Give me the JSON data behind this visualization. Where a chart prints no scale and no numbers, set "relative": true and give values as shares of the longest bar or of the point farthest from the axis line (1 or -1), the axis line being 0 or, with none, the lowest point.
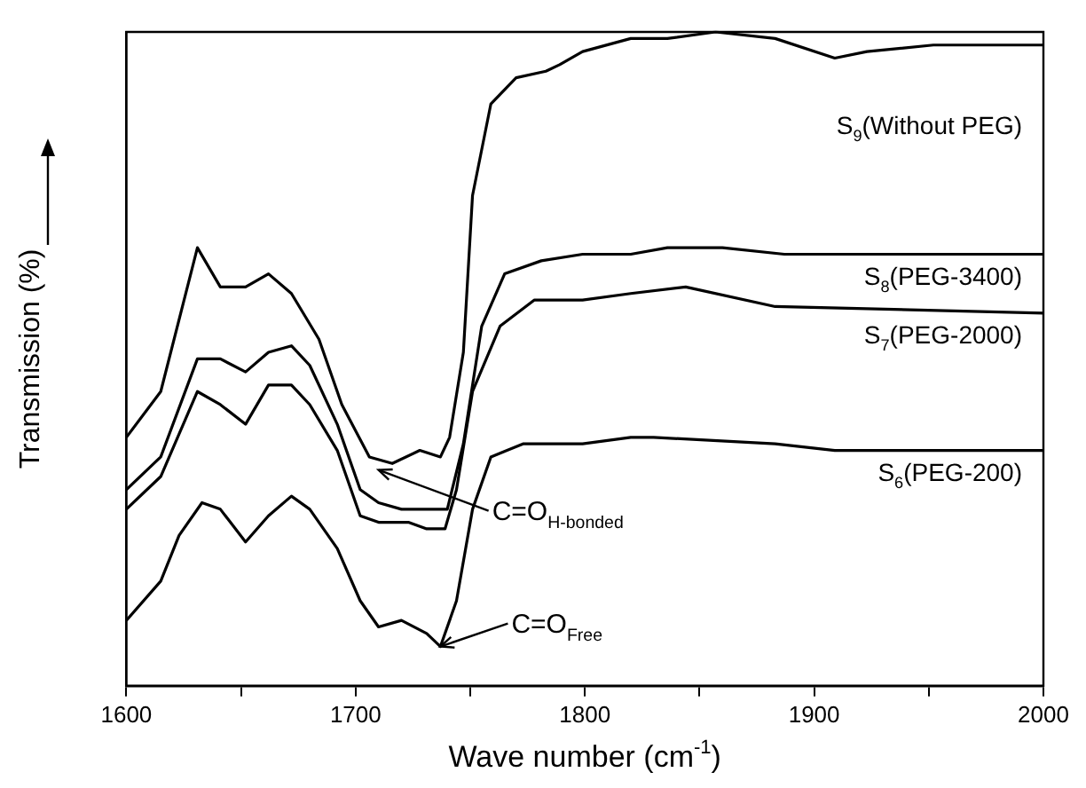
{
  "chart_data": {
    "type": "line",
    "xlabel": "Wave number (cm$^{-1}$)",
    "ylabel": "Transmission (%)",
    "relative": true,
    "legend": false,
    "marker": "none",
    "line_style": "solid",
    "xlim": [
      1600,
      2000
    ],
    "xticks": [
      1600,
      {
        "value": 1650,
        "label": null
      },
      1700,
      {
        "value": 1750,
        "label": null
      },
      1800,
      {
        "value": 1850,
        "label": null
      },
      1900,
      {
        "value": 1950,
        "label": null
      },
      2000
    ],
    "series": [
      {
        "name": "S$_{9}$(Without PEG)",
        "color": "#000000",
        "x": [
          1600,
          1615,
          1631,
          1641,
          1652,
          1662,
          1672,
          1684,
          1694,
          1706,
          1716,
          1728,
          1737,
          1741,
          1747,
          1751,
          1759,
          1770,
          1783,
          1789,
          1799,
          1820,
          1836,
          1857,
          1883,
          1909,
          1923,
          1952,
          2000
        ],
        "values": [
          0.38,
          0.45,
          0.67,
          0.61,
          0.61,
          0.63,
          0.6,
          0.53,
          0.43,
          0.35,
          0.34,
          0.36,
          0.35,
          0.38,
          0.51,
          0.75,
          0.89,
          0.93,
          0.94,
          0.95,
          0.97,
          0.99,
          0.99,
          1.0,
          0.99,
          0.96,
          0.97,
          0.98,
          0.98
        ]
      },
      {
        "name": "S$_{8}$(PEG-3400)",
        "color": "#000000",
        "x": [
          1600,
          1615,
          1631,
          1641,
          1652,
          1662,
          1672,
          1680,
          1692,
          1702,
          1710,
          1720,
          1731,
          1740,
          1747,
          1755,
          1765,
          1781,
          1799,
          1820,
          1836,
          1860,
          1887,
          2000
        ],
        "values": [
          0.3,
          0.35,
          0.5,
          0.5,
          0.48,
          0.51,
          0.52,
          0.49,
          0.4,
          0.3,
          0.28,
          0.27,
          0.27,
          0.27,
          0.37,
          0.55,
          0.63,
          0.65,
          0.66,
          0.66,
          0.67,
          0.67,
          0.66,
          0.66
        ]
      },
      {
        "name": "S$_{7}$(PEG-2000)",
        "color": "#000000",
        "x": [
          1600,
          1615,
          1631,
          1641,
          1652,
          1662,
          1672,
          1680,
          1692,
          1702,
          1710,
          1723,
          1731,
          1739,
          1744,
          1751,
          1763,
          1778,
          1799,
          1820,
          1844,
          1883,
          2000
        ],
        "values": [
          0.27,
          0.32,
          0.45,
          0.43,
          0.4,
          0.46,
          0.46,
          0.43,
          0.36,
          0.26,
          0.25,
          0.25,
          0.24,
          0.24,
          0.3,
          0.45,
          0.55,
          0.59,
          0.59,
          0.6,
          0.61,
          0.58,
          0.57
        ]
      },
      {
        "name": "S$_{6}$(PEG-200)",
        "color": "#000000",
        "x": [
          1600,
          1615,
          1623,
          1633,
          1641,
          1652,
          1662,
          1672,
          1680,
          1692,
          1702,
          1710,
          1720,
          1731,
          1737,
          1744,
          1751,
          1759,
          1773,
          1799,
          1820,
          1830,
          1883,
          1909,
          2000
        ],
        "values": [
          0.1,
          0.16,
          0.23,
          0.28,
          0.27,
          0.22,
          0.26,
          0.29,
          0.27,
          0.21,
          0.13,
          0.09,
          0.1,
          0.08,
          0.06,
          0.13,
          0.27,
          0.35,
          0.37,
          0.37,
          0.38,
          0.38,
          0.37,
          0.36,
          0.36
        ]
      }
    ],
    "annotations": [
      {
        "text": "C=O$_{H-bonded}$",
        "x": 1710,
        "y": 0.33
      },
      {
        "text": "C=O$_{Free}$",
        "x": 1737,
        "y": 0.06
      }
    ]
  }
}
